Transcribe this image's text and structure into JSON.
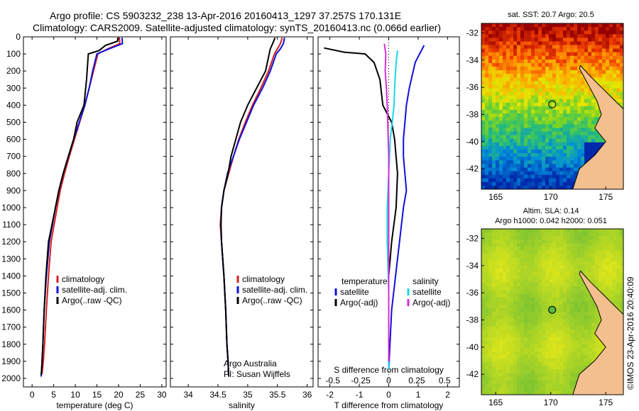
{
  "header": {
    "line1": "Argo profile: CS 5903232_238 13-Apr-2016 20160413_1297 37.257S 170.131E",
    "line2": "Climatology: CARS2009. Satellite-adjusted climatology: synTS_20160413.nc (0.066d earlier)"
  },
  "colors": {
    "climatology": "#d42020",
    "satellite": "#1010d8",
    "argo": "#000000",
    "sal_sat": "#19d7e6",
    "sal_argo": "#d62ed6"
  },
  "chart_data": [
    {
      "type": "line",
      "xlabel": "temperature (deg C)",
      "xlim": [
        -2,
        31
      ],
      "xticks": [
        "0",
        "5",
        "10",
        "15",
        "20",
        "25",
        "30"
      ],
      "ylim": [
        0,
        2050
      ],
      "yticks": [
        "0",
        "100",
        "200",
        "300",
        "400",
        "500",
        "600",
        "700",
        "800",
        "900",
        "1000",
        "1100",
        "1200",
        "1300",
        "1400",
        "1500",
        "1600",
        "1700",
        "1800",
        "1900",
        "2000"
      ],
      "legend": [
        "climatology",
        "satellite-adj. clim.",
        "Argo(..raw -QC)"
      ],
      "legend_placement": "lower-center",
      "series": [
        {
          "name": "climatology",
          "x": [
            20.2,
            20.3,
            17.5,
            15.2,
            14.2,
            13.2,
            12.2,
            11.0,
            9.8,
            8.6,
            7.5,
            6.5,
            5.8,
            5.1,
            4.4,
            3.8,
            3.3,
            2.9,
            2.6,
            2.4,
            2.3
          ],
          "y": [
            5,
            40,
            70,
            100,
            200,
            300,
            400,
            500,
            600,
            700,
            800,
            900,
            1000,
            1100,
            1200,
            1400,
            1600,
            1800,
            1900,
            1950,
            1975
          ]
        },
        {
          "name": "satellite-adj. clim.",
          "x": [
            20.8,
            20.9,
            17.8,
            15.0,
            14.0,
            13.2,
            12.2,
            10.9,
            9.6,
            8.4,
            7.2,
            6.2,
            5.4,
            4.7,
            4.0,
            3.3,
            2.8,
            2.5,
            2.3,
            2.2,
            2.1
          ],
          "y": [
            5,
            40,
            70,
            100,
            200,
            300,
            400,
            500,
            600,
            700,
            800,
            900,
            1000,
            1100,
            1200,
            1400,
            1600,
            1800,
            1900,
            1950,
            1990
          ]
        },
        {
          "name": "Argo(..raw -QC)",
          "x": [
            19.8,
            19.8,
            17.0,
            15.5,
            13.0,
            12.6,
            12.0,
            10.4,
            9.6,
            8.4,
            7.2,
            6.2,
            5.4,
            4.6,
            3.8,
            3.2,
            2.8,
            2.5,
            2.3,
            2.2,
            2.1
          ],
          "y": [
            5,
            25,
            50,
            80,
            100,
            250,
            400,
            500,
            600,
            700,
            800,
            900,
            1000,
            1100,
            1200,
            1400,
            1600,
            1800,
            1900,
            1950,
            1980
          ]
        }
      ]
    },
    {
      "type": "line",
      "xlabel": "salinity",
      "xlim": [
        33.7,
        36.1
      ],
      "xticks": [
        "34",
        "34.5",
        "35",
        "35.5",
        "36"
      ],
      "ylim": [
        0,
        2050
      ],
      "legend": [
        "climatology",
        "satellite-adj. clim.",
        "Argo(..raw -QC)"
      ],
      "legend_placement": "lower-center",
      "annotations": [
        "Argo Australia",
        "PI: Susan Wijffels"
      ],
      "series": [
        {
          "name": "climatology",
          "x": [
            35.58,
            35.55,
            35.5,
            35.45,
            35.35,
            35.22,
            35.08,
            34.96,
            34.85,
            34.76,
            34.68,
            34.6,
            34.56,
            34.54,
            34.56,
            34.6,
            34.63,
            34.65,
            34.67,
            34.68
          ],
          "y": [
            5,
            40,
            70,
            100,
            200,
            300,
            400,
            500,
            600,
            700,
            800,
            900,
            1000,
            1100,
            1200,
            1400,
            1600,
            1800,
            1900,
            1990
          ]
        },
        {
          "name": "satellite-adj. clim.",
          "x": [
            35.62,
            35.6,
            35.55,
            35.48,
            35.38,
            35.25,
            35.1,
            34.98,
            34.86,
            34.76,
            34.66,
            34.6,
            34.56,
            34.55,
            34.56,
            34.6,
            34.63,
            34.65,
            34.67,
            34.68
          ],
          "y": [
            5,
            40,
            70,
            100,
            200,
            300,
            400,
            500,
            600,
            700,
            800,
            900,
            1000,
            1100,
            1200,
            1400,
            1600,
            1800,
            1900,
            1990
          ]
        },
        {
          "name": "Argo(..raw -QC)",
          "x": [
            35.46,
            35.42,
            35.38,
            35.3,
            35.15,
            35.0,
            34.88,
            34.8,
            34.72,
            34.67,
            34.6,
            34.56,
            34.55,
            34.56,
            34.6,
            34.63,
            34.65,
            34.67,
            34.68
          ],
          "y": [
            5,
            40,
            70,
            200,
            300,
            400,
            500,
            600,
            700,
            800,
            900,
            1000,
            1100,
            1200,
            1400,
            1600,
            1800,
            1900,
            1990
          ]
        }
      ]
    },
    {
      "type": "line",
      "xlabel": "T difference from climatology",
      "xlabel_top": "S difference from climatology",
      "xlim": [
        -2.4,
        2.4
      ],
      "xticks": [
        "-2",
        "-1",
        "0",
        "1",
        "2"
      ],
      "xticks_top": [
        "-0.5",
        "-0.25",
        "0",
        "0.25",
        "0.5"
      ],
      "ylim": [
        0,
        2050
      ],
      "legend_left_title": "temperature",
      "legend_right_title": "salinity",
      "legend_left": [
        "satellite",
        "Argo(-adj)"
      ],
      "legend_right": [
        "satellite",
        "Argo(-adj)"
      ],
      "series": [
        {
          "name": "temperature satellite",
          "x": [
            1.2,
            0.9,
            0.7,
            0.6,
            0.55,
            0.5,
            0.5,
            0.55,
            0.6,
            0.5,
            0.3,
            0.1,
            0.0
          ],
          "y": [
            50,
            150,
            300,
            400,
            500,
            600,
            700,
            800,
            900,
            1000,
            1300,
            1600,
            1950
          ]
        },
        {
          "name": "temperature Argo(-adj)",
          "x": [
            -2.2,
            -1.5,
            -0.8,
            -0.5,
            -0.3,
            -0.2,
            0.1,
            0.2,
            0.3,
            0.25,
            0.1,
            0.0,
            0.0,
            0.0
          ],
          "y": [
            65,
            90,
            100,
            150,
            250,
            400,
            500,
            600,
            800,
            1000,
            1200,
            1400,
            1700,
            1950
          ]
        },
        {
          "name": "salinity satellite",
          "x": [
            0.3,
            0.25,
            0.2,
            0.18,
            0.12,
            0.05,
            0.0,
            -0.05,
            -0.05,
            0.0,
            0.0
          ],
          "y": [
            80,
            150,
            300,
            400,
            500,
            600,
            800,
            1000,
            1200,
            1500,
            1950
          ]
        },
        {
          "name": "salinity Argo(-adj)",
          "x": [
            -0.15,
            -0.1,
            -0.12,
            -0.08,
            -0.05,
            0.0,
            0.0,
            0.0
          ],
          "y": [
            40,
            100,
            200,
            300,
            400,
            700,
            1000,
            1900
          ]
        }
      ]
    }
  ],
  "maps": {
    "sst_title": "sat. SST: 20.7  Argo: 20.5",
    "sla_title1": "Altim. SLA: 0.14",
    "sla_title2": "Argo h1000: 0.042  h2000: 0.051",
    "lon_ticks": [
      "165",
      "170",
      "175"
    ],
    "lat_ticks": [
      "-32",
      "-34",
      "-36",
      "-38",
      "-40",
      "-42"
    ],
    "colormap_names": [
      "ocean-gradient"
    ]
  },
  "footer_stamp": "©IMOS 23-Apr-2016 20:40:09"
}
